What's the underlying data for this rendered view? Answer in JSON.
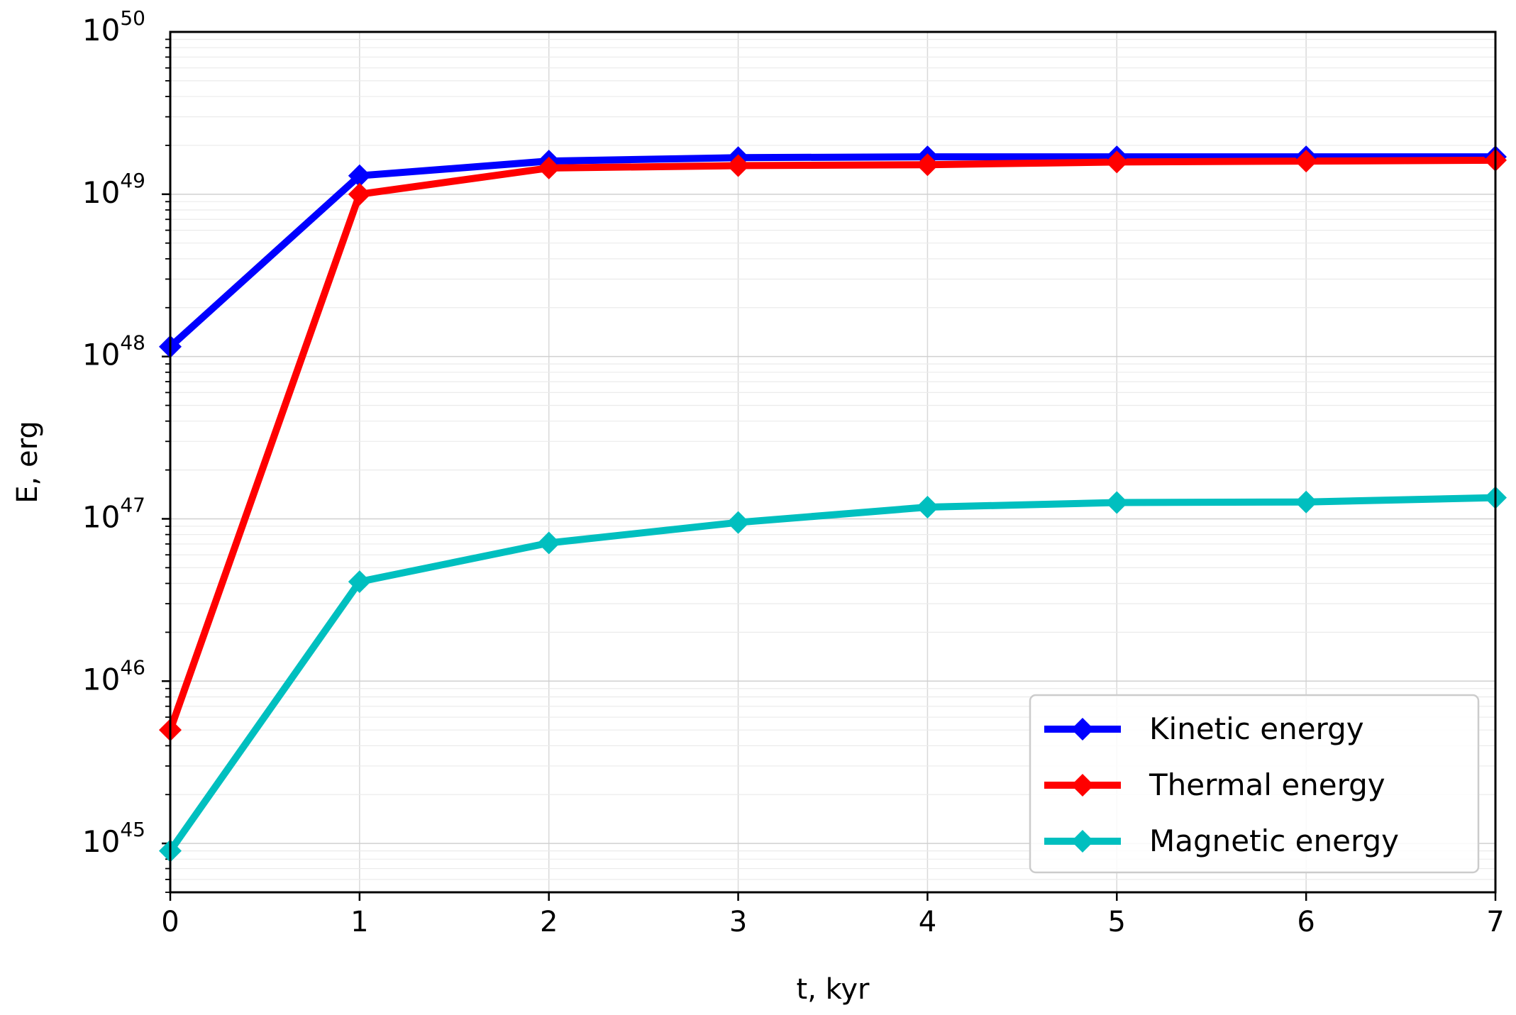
{
  "chart_data": {
    "type": "line",
    "title": "",
    "xlabel": "t, kyr",
    "ylabel": "E, erg",
    "x": [
      0,
      1,
      2,
      3,
      4,
      5,
      6,
      7
    ],
    "xlim": [
      0,
      7
    ],
    "ylim": [
      5e+44,
      1e+50
    ],
    "yscale": "log",
    "x_ticks": [
      "0",
      "1",
      "2",
      "3",
      "4",
      "5",
      "6",
      "7"
    ],
    "y_ticks": [
      {
        "base": "10",
        "exp": "45",
        "value": 1e+45
      },
      {
        "base": "10",
        "exp": "46",
        "value": 1e+46
      },
      {
        "base": "10",
        "exp": "47",
        "value": 1e+47
      },
      {
        "base": "10",
        "exp": "48",
        "value": 1e+48
      },
      {
        "base": "10",
        "exp": "49",
        "value": 1e+49
      },
      {
        "base": "10",
        "exp": "50",
        "value": 1e+50
      }
    ],
    "grid": true,
    "legend_position": "lower-right",
    "series": [
      {
        "name": "Kinetic energy",
        "color": "#0000ff",
        "marker": "diamond",
        "values": [
          1.15e+48,
          1.3e+49,
          1.6e+49,
          1.68e+49,
          1.7e+49,
          1.7e+49,
          1.7e+49,
          1.7e+49
        ]
      },
      {
        "name": "Thermal energy",
        "color": "#ff0000",
        "marker": "diamond",
        "values": [
          5e+45,
          1e+49,
          1.45e+49,
          1.5e+49,
          1.52e+49,
          1.58e+49,
          1.6e+49,
          1.62e+49
        ]
      },
      {
        "name": "Magnetic energy",
        "color": "#00bfbf",
        "marker": "diamond",
        "values": [
          9e+44,
          4.1e+46,
          7.1e+46,
          9.5e+46,
          1.18e+47,
          1.26e+47,
          1.27e+47,
          1.35e+47
        ]
      }
    ]
  }
}
